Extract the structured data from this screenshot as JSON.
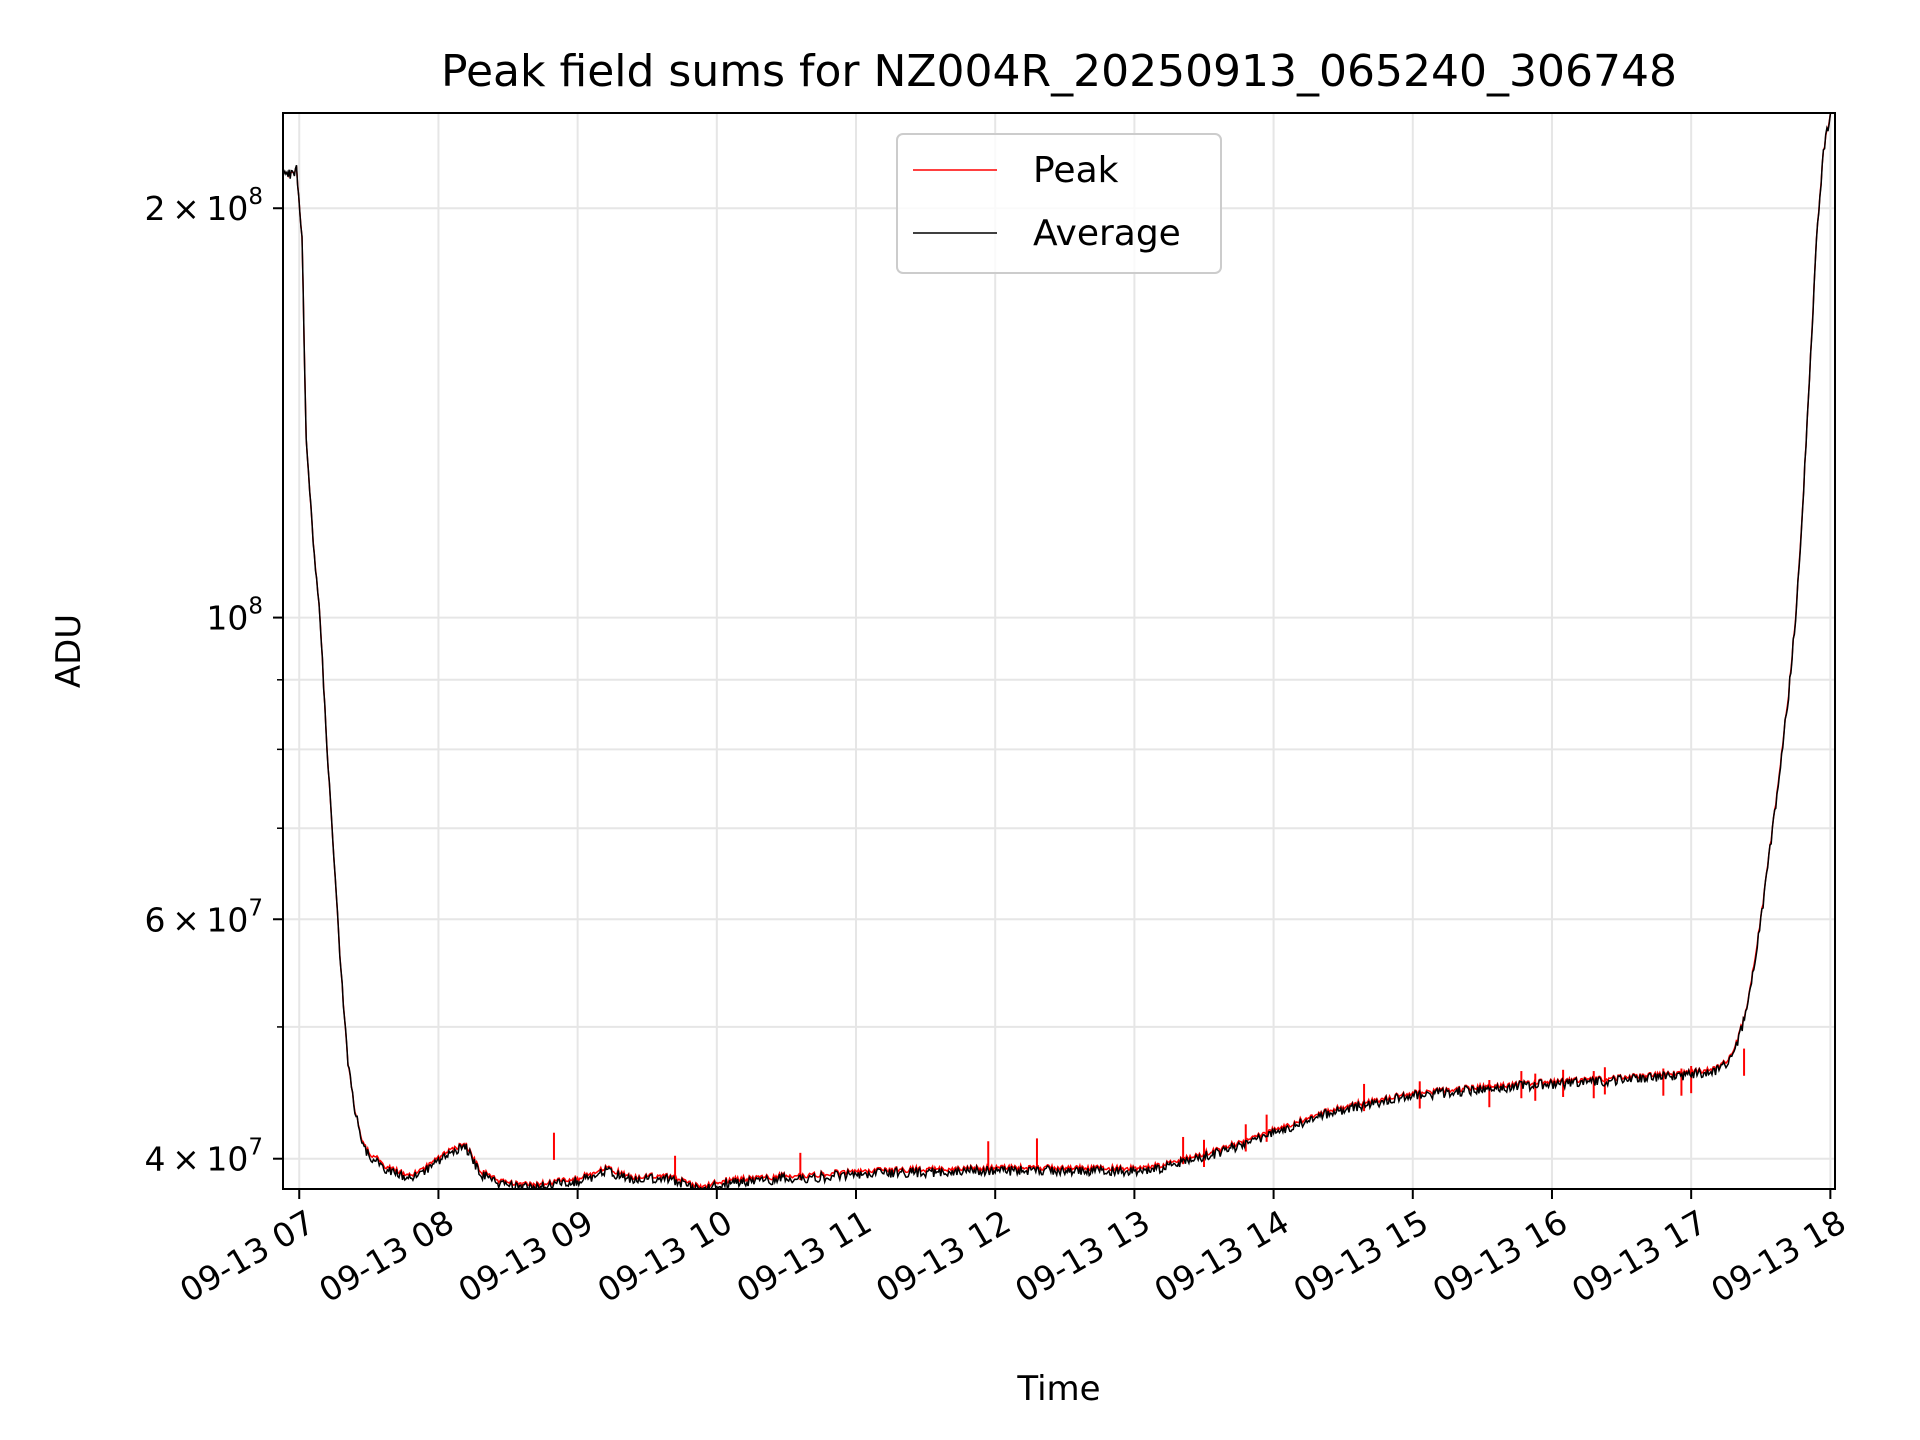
{
  "chart_data": {
    "type": "line",
    "title": "Peak field sums for NZ004R_20250913_065240_306748",
    "xlabel": "Time",
    "ylabel": "ADU",
    "x_scale": "time",
    "y_scale": "log",
    "xlim": [
      "2025-09-13 06:53",
      "2025-09-13 18:02"
    ],
    "ylim": [
      38000000,
      235000000
    ],
    "grid": true,
    "legend_position": "upper center",
    "x_ticks": [
      "09-13 07",
      "09-13 08",
      "09-13 09",
      "09-13 10",
      "09-13 11",
      "09-13 12",
      "09-13 13",
      "09-13 14",
      "09-13 15",
      "09-13 16",
      "09-13 17",
      "09-13 18"
    ],
    "x_tick_hours": [
      7,
      8,
      9,
      10,
      11,
      12,
      13,
      14,
      15,
      16,
      17,
      18
    ],
    "y_major_ticks": [
      {
        "value": 40000000,
        "mantissa": "4",
        "exponent": "7"
      },
      {
        "value": 60000000,
        "mantissa": "6",
        "exponent": "7"
      },
      {
        "value": 100000000,
        "mantissa": "",
        "exponent": "8"
      },
      {
        "value": 200000000,
        "mantissa": "2",
        "exponent": "8"
      }
    ],
    "y_minor_ticks": [
      50000000,
      70000000,
      80000000,
      90000000
    ],
    "series": [
      {
        "name": "Peak",
        "color": "#ff0000",
        "x_hours": [
          6.88,
          6.92,
          6.95,
          6.98,
          7.02,
          7.05,
          7.1,
          7.15,
          7.2,
          7.3,
          7.35,
          7.4,
          7.45,
          7.5,
          7.55,
          7.6,
          7.7,
          7.8,
          7.9,
          8.0,
          8.1,
          8.2,
          8.3,
          8.4,
          8.45,
          8.5,
          8.6,
          8.7,
          8.8,
          8.9,
          9.0,
          9.1,
          9.2,
          9.3,
          9.4,
          9.5,
          9.6,
          9.7,
          9.8,
          9.9,
          10.0,
          10.2,
          10.4,
          10.5,
          10.6,
          10.8,
          11.0,
          11.5,
          12.0,
          12.5,
          13.0,
          13.2,
          13.4,
          13.6,
          13.8,
          14.0,
          14.2,
          14.4,
          14.6,
          14.8,
          15.0,
          15.5,
          16.0,
          16.5,
          17.0,
          17.2,
          17.3,
          17.4,
          17.5,
          17.6,
          17.7,
          17.75,
          17.8,
          17.85,
          17.9,
          17.95,
          18.0,
          18.02
        ],
        "values": [
          213000000,
          212000000,
          212000000,
          214000000,
          190000000,
          135000000,
          114000000,
          100000000,
          80000000,
          55000000,
          47000000,
          43500000,
          41200000,
          40400000,
          40100000,
          39600000,
          39200000,
          38900000,
          39400000,
          40100000,
          40800000,
          40900000,
          39200000,
          38700000,
          38500000,
          38400000,
          38300000,
          38300000,
          38400000,
          38600000,
          38700000,
          39000000,
          39400000,
          39100000,
          38700000,
          38800000,
          38900000,
          38700000,
          38400000,
          38100000,
          38500000,
          38700000,
          38800000,
          38900000,
          38900000,
          39000000,
          39200000,
          39300000,
          39400000,
          39400000,
          39400000,
          39600000,
          40100000,
          40600000,
          41300000,
          42000000,
          42700000,
          43400000,
          43900000,
          44300000,
          44700000,
          45200000,
          45600000,
          45900000,
          46300000,
          46700000,
          47800000,
          51500000,
          60000000,
          72000000,
          88000000,
          100000000,
          120000000,
          150000000,
          190000000,
          220000000,
          235000000,
          235000000
        ],
        "spikes": [
          [
            8.83,
            41800000
          ],
          [
            9.7,
            40200000
          ],
          [
            10.6,
            40400000
          ],
          [
            11.95,
            41200000
          ],
          [
            12.3,
            41400000
          ],
          [
            13.35,
            41500000
          ],
          [
            13.5,
            41300000
          ],
          [
            13.8,
            42400000
          ],
          [
            13.95,
            43100000
          ],
          [
            14.65,
            45400000
          ],
          [
            15.05,
            45600000
          ],
          [
            15.55,
            45700000
          ],
          [
            15.78,
            46400000
          ],
          [
            15.88,
            46200000
          ],
          [
            16.08,
            46500000
          ],
          [
            16.3,
            46400000
          ],
          [
            16.38,
            46700000
          ],
          [
            16.8,
            46600000
          ],
          [
            16.93,
            46600000
          ],
          [
            17.0,
            46800000
          ],
          [
            17.38,
            48200000
          ]
        ]
      },
      {
        "name": "Average",
        "color": "#000000",
        "x_hours": [
          6.88,
          6.92,
          6.95,
          6.98,
          7.02,
          7.05,
          7.1,
          7.15,
          7.2,
          7.3,
          7.35,
          7.4,
          7.45,
          7.5,
          7.55,
          7.6,
          7.7,
          7.8,
          7.9,
          8.0,
          8.1,
          8.2,
          8.3,
          8.4,
          8.45,
          8.5,
          8.6,
          8.7,
          8.8,
          8.9,
          9.0,
          9.1,
          9.2,
          9.3,
          9.4,
          9.5,
          9.6,
          9.7,
          9.8,
          9.9,
          10.0,
          10.2,
          10.4,
          10.5,
          10.6,
          10.8,
          11.0,
          11.5,
          12.0,
          12.5,
          13.0,
          13.2,
          13.4,
          13.6,
          13.8,
          14.0,
          14.2,
          14.4,
          14.6,
          14.8,
          15.0,
          15.5,
          16.0,
          16.5,
          17.0,
          17.2,
          17.3,
          17.4,
          17.5,
          17.6,
          17.7,
          17.75,
          17.8,
          17.85,
          17.9,
          17.95,
          18.0,
          18.02
        ],
        "values": [
          213000000,
          212000000,
          212000000,
          214000000,
          190000000,
          135000000,
          114000000,
          100000000,
          80000000,
          55000000,
          47000000,
          43500000,
          41000000,
          40200000,
          39800000,
          39400000,
          39000000,
          38700000,
          39200000,
          39900000,
          40600000,
          40700000,
          39000000,
          38500000,
          38300000,
          38200000,
          38100000,
          38100000,
          38200000,
          38400000,
          38500000,
          38800000,
          39200000,
          38900000,
          38500000,
          38600000,
          38700000,
          38500000,
          38200000,
          37900000,
          38300000,
          38500000,
          38600000,
          38700000,
          38700000,
          38800000,
          39000000,
          39100000,
          39200000,
          39200000,
          39200000,
          39400000,
          39900000,
          40400000,
          41100000,
          41800000,
          42500000,
          43200000,
          43700000,
          44100000,
          44500000,
          45000000,
          45400000,
          45700000,
          46100000,
          46500000,
          47600000,
          51300000,
          59800000,
          71800000,
          87800000,
          99800000,
          119800000,
          149800000,
          189800000,
          219800000,
          235000000,
          235000000
        ]
      }
    ]
  }
}
